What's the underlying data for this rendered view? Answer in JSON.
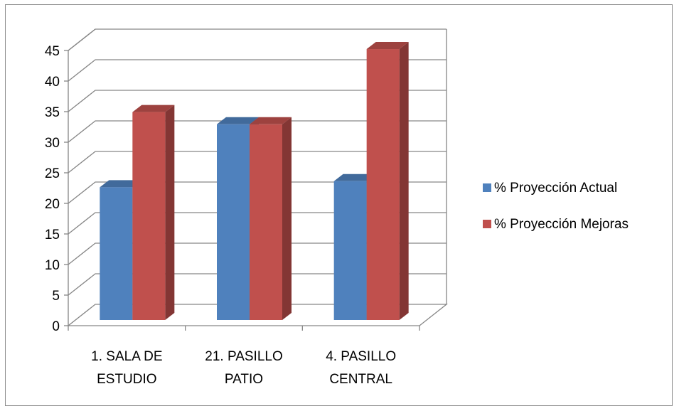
{
  "chart_data": {
    "type": "bar",
    "style": "3d-clustered-column",
    "categories": [
      [
        "1. SALA DE",
        "ESTUDIO"
      ],
      [
        "21. PASILLO",
        "PATIO"
      ],
      [
        "4. PASILLO",
        "CENTRAL"
      ]
    ],
    "series": [
      {
        "name": "% Proyección Actual",
        "values": [
          21.7,
          32.0,
          22.7
        ],
        "color": "#4F81BD"
      },
      {
        "name": "% Proyección Mejoras",
        "values": [
          34.0,
          32.0,
          44.3
        ],
        "color": "#C0504D"
      }
    ],
    "yticks": [
      "0",
      "5",
      "10",
      "15",
      "20",
      "25",
      "30",
      "35",
      "40",
      "45"
    ],
    "ylim": [
      0,
      45
    ],
    "grid": true,
    "legend": "right",
    "title": "",
    "xlabel": "",
    "ylabel": ""
  }
}
